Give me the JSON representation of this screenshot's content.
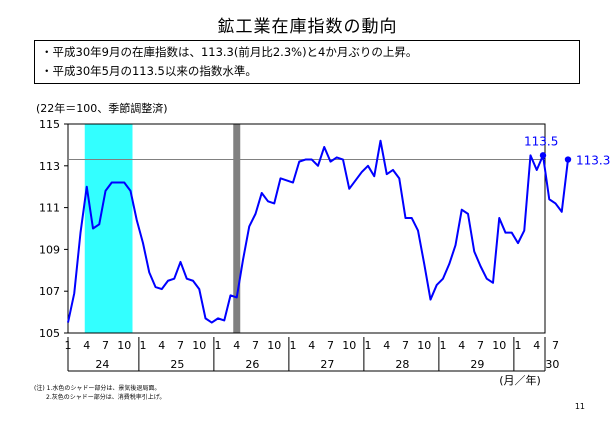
{
  "title": "鉱工業在庫指数の動向",
  "summary": [
    "・平成30年9月の在庫指数は、113.3(前月比2.3%)と4か月ぶりの上昇。",
    "・平成30年5月の113.5以来の指数水準。"
  ],
  "unit_label": "(22年＝100、季節調整済)",
  "axis_unit_label": "(月／年)",
  "notes": [
    "(注) 1.水色のシャドー部分は、景気後退局面。",
    "2.灰色のシャドー部分は、消費税率引上げ。"
  ],
  "page_number": "11",
  "colors": {
    "line": "#0000ff",
    "recession": "#33ffff",
    "tax": "#808080",
    "refline": "#808080"
  },
  "chart_data": {
    "type": "line",
    "ylim": [
      105,
      115
    ],
    "yticks": [
      105,
      107,
      109,
      111,
      113,
      115
    ],
    "month_tick_labels": [
      "1",
      "4",
      "7",
      "10"
    ],
    "year_labels": [
      "24",
      "25",
      "26",
      "27",
      "28",
      "29",
      "30"
    ],
    "series": [
      {
        "start": "2012-01",
        "values": [
          105.5,
          106.9,
          109.8,
          112.0,
          110.0,
          110.2,
          111.8,
          112.2,
          112.2,
          112.2,
          111.8,
          110.4,
          109.3,
          107.9,
          107.2,
          107.1,
          107.5,
          107.6,
          108.4,
          107.6,
          107.5,
          107.1,
          105.7,
          105.5,
          105.7,
          105.6,
          106.8,
          106.7,
          108.5,
          110.1,
          110.7,
          111.7,
          111.3,
          111.2,
          112.4,
          112.3,
          112.2,
          113.2,
          113.3,
          113.3,
          113.0,
          113.9,
          113.2,
          113.4,
          113.3,
          111.9,
          112.3,
          112.7,
          113.0,
          112.5,
          114.2,
          112.6,
          112.8,
          112.4,
          110.5,
          110.5,
          109.9,
          108.3,
          106.6,
          107.3,
          107.6,
          108.3,
          109.2,
          110.9,
          110.7,
          108.9,
          108.2,
          107.6,
          107.4,
          110.5,
          109.8,
          109.8,
          109.3,
          109.9,
          113.5,
          112.8,
          113.5,
          111.4,
          111.2,
          110.8,
          113.3
        ]
      }
    ],
    "annotations": [
      {
        "date": "2018-05",
        "value": 113.5,
        "label": "113.5"
      },
      {
        "date": "2018-09",
        "value": 113.3,
        "label": "113.3"
      }
    ],
    "reference_line": 113.3,
    "recession_shading": [
      "2012-04",
      "2012-11"
    ],
    "tax_shading": "2014-04"
  }
}
